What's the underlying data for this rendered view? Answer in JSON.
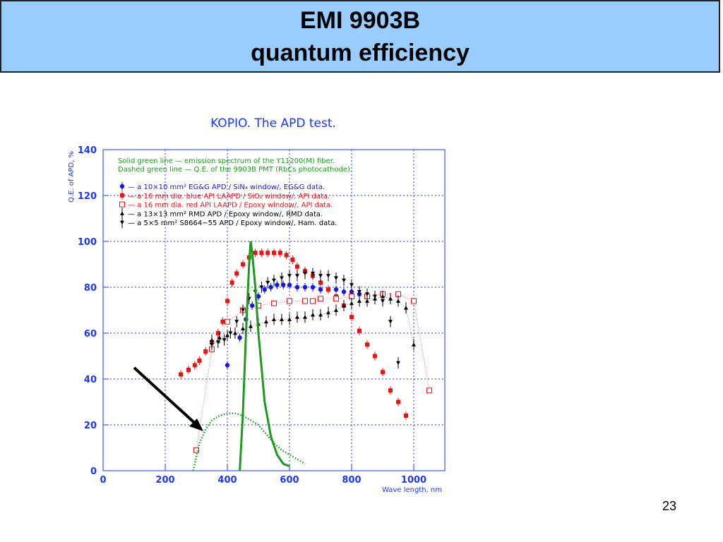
{
  "slide": {
    "title_line1": "EMI 9903B",
    "title_line2": "quantum efficiency",
    "page_number": "23"
  },
  "colors": {
    "title_bg": "#99ccff",
    "axis_blue": "#1a37ff",
    "green": "#1b9a1b",
    "red": "#ee1111",
    "blue_series": "#1515ee",
    "black": "#000000",
    "grid": "#1a37ff"
  },
  "chart_data": {
    "type": "scatter",
    "title": "KOPIO. The APD test.",
    "xlabel": "Wave length, nm",
    "ylabel": "Q.E. of APD, %",
    "xlim": [
      0,
      1100
    ],
    "ylim": [
      0,
      140
    ],
    "xticks": [
      0,
      200,
      400,
      600,
      800,
      1000
    ],
    "yticks": [
      0,
      20,
      40,
      60,
      80,
      100,
      120,
      140
    ],
    "grid": true,
    "notes": [
      "Solid green line — emission spectrum of the Y11200(M) fiber.",
      "Dashed green line — Q.E. of the 9903B PMT (RbCs photocathode)."
    ],
    "legend_position": "top-left",
    "series": [
      {
        "name": "— a 10×10 mm² EG&G APD / SiN₄ window/, EG&G data.",
        "marker": "circle",
        "color": "#1515ee",
        "x": [
          400,
          440,
          460,
          480,
          500,
          520,
          540,
          560,
          580,
          600,
          625,
          650,
          675,
          700,
          725,
          750,
          775,
          800,
          825
        ],
        "y": [
          46,
          58,
          66,
          72,
          76,
          79,
          80,
          81,
          81,
          81,
          80,
          80,
          80,
          79,
          79,
          79,
          78,
          78,
          77
        ]
      },
      {
        "name": "— a 16 mm dia. blue API LAAPD / SiO₂ window/, API data.",
        "marker": "filled-square",
        "color": "#ee1111",
        "x": [
          250,
          275,
          295,
          310,
          330,
          350,
          370,
          385,
          400,
          415,
          430,
          450,
          470,
          490,
          510,
          530,
          550,
          570,
          590,
          610,
          625,
          650,
          675,
          700,
          725,
          750,
          775,
          800,
          825,
          850,
          875,
          900,
          925,
          950,
          975
        ],
        "y": [
          42,
          44,
          46,
          48,
          52,
          56,
          60,
          65,
          74,
          82,
          86,
          90,
          93,
          95,
          95,
          95,
          95,
          95,
          94,
          92,
          89,
          87,
          85,
          82,
          79,
          76,
          72,
          67,
          61,
          55,
          50,
          43,
          35,
          30,
          24
        ]
      },
      {
        "name": "— a 16 mm dia. red API LAAPD / Epoxy window/, API data.",
        "marker": "open-square",
        "color": "#ee1111",
        "x": [
          300,
          350,
          400,
          450,
          500,
          550,
          600,
          650,
          675,
          700,
          750,
          800,
          850,
          900,
          950,
          1000,
          1050
        ],
        "y": [
          9,
          53,
          65,
          70,
          72,
          73,
          74,
          74,
          74,
          75,
          75,
          76,
          76,
          77,
          77,
          74,
          35
        ]
      },
      {
        "name": "— a 13×13 mm² RMD APD / Epoxy window/, RMD data.",
        "marker": "triangle-up",
        "color": "#000000",
        "x": [
          350,
          375,
          400,
          425,
          450,
          475,
          500,
          525,
          550,
          575,
          600,
          625,
          650,
          675,
          700,
          725,
          750,
          775,
          800,
          825,
          850,
          875,
          900,
          925,
          950,
          975,
          1000
        ],
        "y": [
          57,
          58,
          59,
          60,
          62,
          63,
          64,
          65,
          66,
          66,
          66,
          67,
          67,
          68,
          68,
          69,
          70,
          72,
          73,
          74,
          74,
          75,
          76,
          75,
          74,
          71,
          55
        ]
      },
      {
        "name": "— a 5×5 mm² S8664−55 APD / Epoxy window/, Ham. data.",
        "marker": "triangle-down",
        "color": "#000000",
        "x": [
          350,
          370,
          390,
          410,
          430,
          450,
          470,
          490,
          510,
          530,
          550,
          575,
          600,
          625,
          650,
          675,
          700,
          725,
          750,
          775,
          800,
          825,
          850,
          875,
          900,
          925,
          950
        ],
        "y": [
          55,
          56,
          57,
          60,
          65,
          70,
          75,
          78,
          80,
          82,
          83,
          84,
          85,
          85,
          86,
          86,
          85,
          85,
          84,
          83,
          81,
          78,
          77,
          76,
          74,
          65,
          47
        ]
      },
      {
        "name": "Solid green line",
        "marker": "solid-line",
        "color": "#1b9a1b",
        "x": [
          440,
          450,
          460,
          470,
          475,
          480,
          490,
          500,
          510,
          520,
          540,
          560,
          580,
          600
        ],
        "y": [
          0,
          25,
          60,
          90,
          100,
          95,
          80,
          60,
          45,
          30,
          15,
          7,
          3,
          2
        ]
      },
      {
        "name": "Dashed green line",
        "marker": "dotted-line",
        "color": "#1b9a1b",
        "x": [
          290,
          310,
          330,
          350,
          375,
          400,
          425,
          450,
          475,
          500,
          525,
          550,
          575,
          600,
          625,
          650
        ],
        "y": [
          0,
          12,
          18,
          22,
          24,
          25,
          25,
          24,
          22,
          20,
          16,
          12,
          9,
          7,
          5,
          3
        ]
      }
    ]
  }
}
